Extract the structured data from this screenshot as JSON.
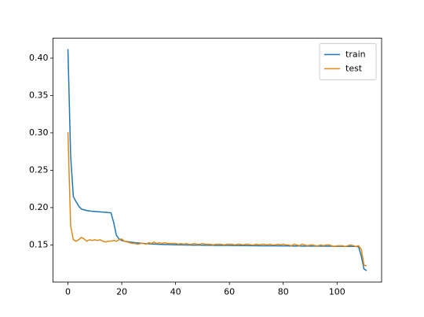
{
  "chart_data": {
    "type": "line",
    "x": [
      0,
      1,
      2,
      3,
      4,
      5,
      6,
      7,
      8,
      9,
      10,
      11,
      12,
      13,
      14,
      15,
      16,
      17,
      18,
      19,
      20,
      21,
      22,
      23,
      24,
      25,
      26,
      27,
      28,
      29,
      30,
      31,
      32,
      33,
      34,
      35,
      36,
      37,
      38,
      39,
      40,
      41,
      42,
      43,
      44,
      45,
      46,
      47,
      48,
      49,
      50,
      51,
      52,
      53,
      54,
      55,
      56,
      57,
      58,
      59,
      60,
      61,
      62,
      63,
      64,
      65,
      66,
      67,
      68,
      69,
      70,
      71,
      72,
      73,
      74,
      75,
      76,
      77,
      78,
      79,
      80,
      81,
      82,
      83,
      84,
      85,
      86,
      87,
      88,
      89,
      90,
      91,
      92,
      93,
      94,
      95,
      96,
      97,
      98,
      99,
      100,
      101,
      102,
      103,
      104,
      105,
      106,
      107,
      108,
      109,
      110,
      111
    ],
    "series": [
      {
        "name": "train",
        "color": "#1f77b4",
        "values": [
          0.412,
          0.27,
          0.215,
          0.208,
          0.202,
          0.198,
          0.197,
          0.196,
          0.1955,
          0.195,
          0.1948,
          0.1945,
          0.1942,
          0.194,
          0.1937,
          0.1933,
          0.193,
          0.18,
          0.163,
          0.158,
          0.156,
          0.155,
          0.1545,
          0.154,
          0.1535,
          0.153,
          0.1527,
          0.1524,
          0.1521,
          0.1518,
          0.1516,
          0.1514,
          0.1512,
          0.151,
          0.1508,
          0.1507,
          0.1506,
          0.1505,
          0.1504,
          0.1503,
          0.1502,
          0.1501,
          0.15,
          0.15,
          0.1499,
          0.1499,
          0.1498,
          0.1498,
          0.1497,
          0.1497,
          0.1496,
          0.1496,
          0.1495,
          0.1495,
          0.1495,
          0.1494,
          0.1494,
          0.1494,
          0.1493,
          0.1493,
          0.1493,
          0.1492,
          0.1492,
          0.1492,
          0.1491,
          0.1491,
          0.1491,
          0.149,
          0.149,
          0.149,
          0.149,
          0.1489,
          0.1489,
          0.1489,
          0.1489,
          0.1488,
          0.1488,
          0.1488,
          0.1488,
          0.1487,
          0.1487,
          0.1487,
          0.1487,
          0.1486,
          0.1486,
          0.1486,
          0.1486,
          0.1485,
          0.1485,
          0.1485,
          0.1485,
          0.1484,
          0.1484,
          0.1484,
          0.1484,
          0.1483,
          0.1483,
          0.1483,
          0.1483,
          0.1482,
          0.1482,
          0.1482,
          0.1482,
          0.1481,
          0.1481,
          0.1481,
          0.148,
          0.148,
          0.1475,
          0.135,
          0.118,
          0.1155
        ]
      },
      {
        "name": "test",
        "color": "#e0891a",
        "values": [
          0.301,
          0.176,
          0.157,
          0.155,
          0.157,
          0.16,
          0.158,
          0.155,
          0.157,
          0.156,
          0.157,
          0.156,
          0.157,
          0.155,
          0.154,
          0.155,
          0.155,
          0.156,
          0.155,
          0.157,
          0.158,
          0.155,
          0.154,
          0.153,
          0.152,
          0.152,
          0.151,
          0.152,
          0.152,
          0.151,
          0.153,
          0.152,
          0.154,
          0.152,
          0.153,
          0.152,
          0.153,
          0.152,
          0.152,
          0.152,
          0.152,
          0.151,
          0.152,
          0.151,
          0.152,
          0.151,
          0.151,
          0.152,
          0.151,
          0.151,
          0.152,
          0.151,
          0.151,
          0.151,
          0.15,
          0.151,
          0.151,
          0.151,
          0.15,
          0.151,
          0.151,
          0.151,
          0.15,
          0.151,
          0.151,
          0.15,
          0.151,
          0.151,
          0.15,
          0.15,
          0.151,
          0.15,
          0.151,
          0.151,
          0.15,
          0.151,
          0.15,
          0.15,
          0.151,
          0.15,
          0.151,
          0.15,
          0.15,
          0.149,
          0.151,
          0.15,
          0.149,
          0.151,
          0.15,
          0.149,
          0.15,
          0.15,
          0.149,
          0.149,
          0.15,
          0.149,
          0.15,
          0.15,
          0.149,
          0.148,
          0.149,
          0.149,
          0.149,
          0.148,
          0.149,
          0.15,
          0.149,
          0.148,
          0.149,
          0.144,
          0.123,
          0.122
        ]
      }
    ],
    "xlim": [
      -5.55,
      116.55
    ],
    "xticks": [
      0,
      20,
      40,
      60,
      80,
      100
    ],
    "ylim": [
      0.1002,
      0.4269
    ],
    "yticks": [
      0.15,
      {
        "value": 0.2,
        "label": "0.20"
      },
      0.25,
      {
        "value": 0.3,
        "label": "0.30"
      },
      0.35,
      {
        "value": 0.4,
        "label": "0.40"
      }
    ],
    "legend": "upper right"
  }
}
